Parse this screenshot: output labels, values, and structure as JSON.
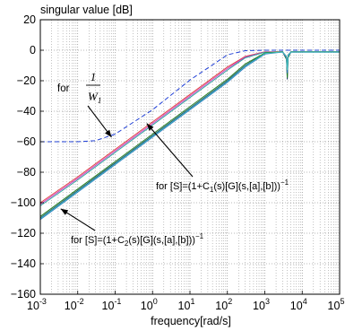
{
  "chart_data": {
    "type": "line",
    "title": "singular value [dB]",
    "xlabel": "frequency[rad/s]",
    "ylabel": "",
    "x_scale": "log",
    "xlim": [
      0.001,
      100000
    ],
    "ylim": [
      -160,
      20
    ],
    "grid": true,
    "x_ticks": [
      {
        "base": "10",
        "exp": "-3",
        "value": 0.001
      },
      {
        "base": "10",
        "exp": "-2",
        "value": 0.01
      },
      {
        "base": "10",
        "exp": "-1",
        "value": 0.1
      },
      {
        "base": "10",
        "exp": "0",
        "value": 1
      },
      {
        "base": "10",
        "exp": "1",
        "value": 10
      },
      {
        "base": "10",
        "exp": "2",
        "value": 100
      },
      {
        "base": "10",
        "exp": "3",
        "value": 1000
      },
      {
        "base": "10",
        "exp": "4",
        "value": 10000
      },
      {
        "base": "10",
        "exp": "5",
        "value": 100000
      }
    ],
    "y_ticks": [
      "20",
      "0",
      "−20",
      "−40",
      "−60",
      "−80",
      "−100",
      "−120",
      "−140",
      "−160"
    ],
    "series": [
      {
        "color": "#1f3fd6",
        "dash": "5,3",
        "x": [
          0.001,
          0.01,
          0.03,
          0.1,
          1,
          10,
          100,
          300,
          1000,
          100000
        ],
        "y": [
          -60,
          -60,
          -59.3,
          -55,
          -39,
          -19.5,
          -3,
          -0.3,
          0,
          0
        ]
      },
      {
        "color": "#e04040",
        "x": [
          0.001,
          0.01,
          0.1,
          1,
          10,
          100,
          300,
          1000,
          3000,
          3800,
          4000,
          4200,
          5000,
          100000
        ],
        "y": [
          -100,
          -83,
          -65,
          -47,
          -29,
          -11,
          -4,
          -1,
          -1,
          -4,
          -10,
          -3,
          -1,
          -1
        ]
      },
      {
        "color": "#d040c0",
        "x": [
          0.001,
          0.01,
          0.1,
          1,
          10,
          100,
          300,
          1000,
          3000,
          3800,
          4000,
          4200,
          5000,
          100000
        ],
        "y": [
          -101,
          -84,
          -66,
          -48,
          -30,
          -12,
          -4.5,
          -1.2,
          -1.2,
          -6,
          -14,
          -4,
          -1.2,
          -1.2
        ]
      },
      {
        "color": "#30a0a0",
        "x": [
          0.001,
          0.01,
          0.1,
          1,
          10,
          100,
          300,
          1000,
          3000,
          3800,
          4000,
          4200,
          5000,
          100000
        ],
        "y": [
          -102,
          -85,
          -67,
          -49,
          -31,
          -13,
          -5,
          -1.3,
          -1.3,
          -5,
          -12,
          -4,
          -1.3,
          -1.3
        ]
      },
      {
        "color": "#103060",
        "x": [
          0.001,
          0.01,
          0.1,
          1,
          10,
          100,
          300,
          1000,
          3000,
          3800,
          4000,
          4200,
          5000,
          100000
        ],
        "y": [
          -110,
          -92,
          -74,
          -56,
          -38,
          -20,
          -10,
          -2,
          -1,
          -5,
          -19,
          -4,
          -1,
          -1
        ]
      },
      {
        "color": "#208020",
        "x": [
          0.001,
          0.01,
          0.1,
          1,
          10,
          100,
          300,
          1000,
          3000,
          3800,
          4000,
          4200,
          5000,
          100000
        ],
        "y": [
          -109,
          -91,
          -73,
          -55,
          -37,
          -19,
          -9,
          -1.8,
          -1,
          -6,
          -18,
          -5,
          -1,
          -1
        ]
      },
      {
        "color": "#3070c0",
        "x": [
          0.001,
          0.01,
          0.1,
          1,
          10,
          100,
          300,
          1000,
          3000,
          3800,
          4000,
          4200,
          5000,
          100000
        ],
        "y": [
          -111,
          -93,
          -75,
          -57,
          -39,
          -21,
          -11,
          -2.5,
          -1.2,
          -5,
          -15,
          -4,
          -1.2,
          -1.2
        ]
      },
      {
        "color": "#40c0c0",
        "x": [
          0.001,
          0.01,
          0.1,
          1,
          10,
          100,
          300,
          1000,
          3000,
          3800,
          4000,
          4200,
          5000,
          100000
        ],
        "y": [
          -110.5,
          -92.5,
          -74.5,
          -56.5,
          -38.5,
          -20.5,
          -10.5,
          -2.2,
          -1.1,
          -4,
          -13,
          -3,
          -1.1,
          -1.1
        ]
      }
    ],
    "annotations": {
      "w1": {
        "prefix": "for",
        "num": "1",
        "den_base": "W",
        "den_sub": "1",
        "arrow_to": {
          "x": 0.08,
          "y": -57
        }
      },
      "s1": {
        "before": "for  [S]=(1+C",
        "sub": "1",
        "middle": "(s)[G](s,[a],[b]))",
        "sup": "−1",
        "arrow_to": {
          "x": 0.7,
          "y": -48
        }
      },
      "s2": {
        "before": "for  [S]=(1+C",
        "sub": "2",
        "middle": "(s)[G](s,[a],[b]))",
        "sup": "−1",
        "arrow_to": {
          "x": 0.0035,
          "y": -104
        }
      }
    }
  }
}
